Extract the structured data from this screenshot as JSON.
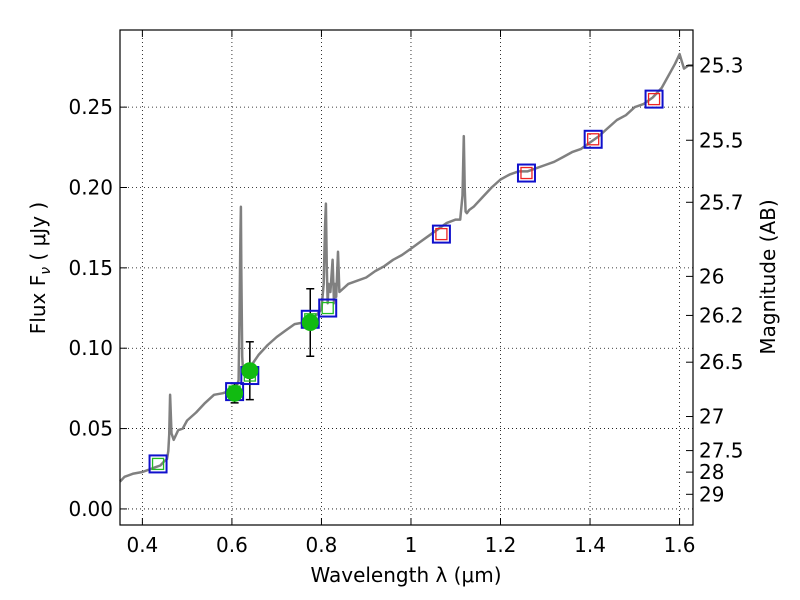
{
  "chart_data": {
    "type": "scatter",
    "xlabel": "Wavelength  λ (μm)",
    "ylabel": "Flux  F",
    "ylabel_sub": "ν",
    "ylabel_unit": " ( μJy )",
    "y2label": "Magnitude (AB)",
    "xlim": [
      0.35,
      1.63
    ],
    "ylim": [
      -0.01,
      0.298
    ],
    "x_ticks": [
      0.4,
      0.6,
      0.8,
      1.0,
      1.2,
      1.4,
      1.6
    ],
    "x_tick_labels": [
      "0.4",
      "0.6",
      "0.8",
      "1",
      "1.2",
      "1.4",
      "1.6"
    ],
    "y_ticks": [
      0.0,
      0.05,
      0.1,
      0.15,
      0.2,
      0.25
    ],
    "y_tick_labels": [
      "0.00",
      "0.05",
      "0.10",
      "0.15",
      "0.20",
      "0.25"
    ],
    "mag_ticks": [
      {
        "label": "25.3",
        "flux": 0.2758
      },
      {
        "label": "25.5",
        "flux": 0.2294
      },
      {
        "label": "25.7",
        "flux": 0.1908
      },
      {
        "label": "26",
        "flux": 0.1447
      },
      {
        "label": "26.2",
        "flux": 0.1204
      },
      {
        "label": "26.5",
        "flux": 0.0913
      },
      {
        "label": "27",
        "flux": 0.0575
      },
      {
        "label": "27.5",
        "flux": 0.0363
      },
      {
        "label": "28",
        "flux": 0.0229
      },
      {
        "label": "29",
        "flux": 0.0091
      }
    ],
    "grid": true,
    "spectrum": {
      "color": "#808080",
      "x": [
        0.35,
        0.36,
        0.38,
        0.4,
        0.42,
        0.43,
        0.44,
        0.45,
        0.455,
        0.458,
        0.46,
        0.462,
        0.465,
        0.47,
        0.48,
        0.49,
        0.5,
        0.52,
        0.54,
        0.56,
        0.58,
        0.6,
        0.61,
        0.615,
        0.617,
        0.619,
        0.62,
        0.621,
        0.623,
        0.625,
        0.63,
        0.64,
        0.65,
        0.66,
        0.68,
        0.7,
        0.72,
        0.74,
        0.76,
        0.78,
        0.79,
        0.8,
        0.805,
        0.808,
        0.81,
        0.812,
        0.814,
        0.816,
        0.82,
        0.825,
        0.828,
        0.83,
        0.833,
        0.837,
        0.84,
        0.86,
        0.88,
        0.9,
        0.92,
        0.94,
        0.96,
        0.98,
        1.0,
        1.02,
        1.04,
        1.06,
        1.08,
        1.1,
        1.11,
        1.115,
        1.118,
        1.12,
        1.122,
        1.125,
        1.13,
        1.14,
        1.16,
        1.18,
        1.2,
        1.22,
        1.24,
        1.26,
        1.28,
        1.3,
        1.32,
        1.34,
        1.36,
        1.38,
        1.4,
        1.42,
        1.44,
        1.46,
        1.48,
        1.5,
        1.52,
        1.54,
        1.56,
        1.58,
        1.59,
        1.6,
        1.61,
        1.62,
        1.63
      ],
      "y": [
        0.017,
        0.02,
        0.022,
        0.023,
        0.025,
        0.026,
        0.027,
        0.03,
        0.031,
        0.036,
        0.046,
        0.071,
        0.047,
        0.043,
        0.049,
        0.05,
        0.055,
        0.06,
        0.066,
        0.071,
        0.072,
        0.074,
        0.076,
        0.08,
        0.12,
        0.17,
        0.188,
        0.15,
        0.095,
        0.085,
        0.087,
        0.088,
        0.092,
        0.096,
        0.102,
        0.107,
        0.111,
        0.115,
        0.116,
        0.119,
        0.121,
        0.124,
        0.14,
        0.175,
        0.19,
        0.15,
        0.128,
        0.14,
        0.135,
        0.155,
        0.128,
        0.14,
        0.132,
        0.16,
        0.135,
        0.14,
        0.142,
        0.144,
        0.148,
        0.151,
        0.155,
        0.158,
        0.162,
        0.166,
        0.17,
        0.174,
        0.178,
        0.18,
        0.18,
        0.195,
        0.232,
        0.2,
        0.185,
        0.184,
        0.186,
        0.188,
        0.194,
        0.2,
        0.205,
        0.208,
        0.21,
        0.21,
        0.212,
        0.214,
        0.216,
        0.219,
        0.222,
        0.224,
        0.228,
        0.232,
        0.237,
        0.242,
        0.245,
        0.25,
        0.252,
        0.256,
        0.262,
        0.272,
        0.277,
        0.283,
        0.274,
        0.276,
        0.276
      ]
    },
    "series": [
      {
        "marker": "square",
        "edge_color": "#1010cc",
        "points": [
          {
            "x": 0.435,
            "y": 0.028
          },
          {
            "x": 0.606,
            "y": 0.073
          },
          {
            "x": 0.64,
            "y": 0.083
          },
          {
            "x": 0.775,
            "y": 0.118
          },
          {
            "x": 0.814,
            "y": 0.125
          },
          {
            "x": 1.068,
            "y": 0.171
          },
          {
            "x": 1.258,
            "y": 0.209
          },
          {
            "x": 1.407,
            "y": 0.23
          },
          {
            "x": 1.543,
            "y": 0.255
          }
        ]
      },
      {
        "marker": "small-square",
        "points": [
          {
            "x": 0.435,
            "y": 0.028,
            "color": "#22bb22"
          },
          {
            "x": 0.606,
            "y": 0.073,
            "color": "#22bb22"
          },
          {
            "x": 0.64,
            "y": 0.083,
            "color": "#22bb22"
          },
          {
            "x": 0.775,
            "y": 0.118,
            "color": "#22bb22"
          },
          {
            "x": 0.814,
            "y": 0.125,
            "color": "#22bb22"
          },
          {
            "x": 1.068,
            "y": 0.171,
            "color": "#ee2222"
          },
          {
            "x": 1.258,
            "y": 0.209,
            "color": "#ee2222"
          },
          {
            "x": 1.407,
            "y": 0.23,
            "color": "#ee2222"
          },
          {
            "x": 1.543,
            "y": 0.255,
            "color": "#ee2222"
          }
        ]
      },
      {
        "marker": "circle",
        "color": "#11bb11",
        "points": [
          {
            "x": 0.606,
            "y": 0.072,
            "err": 0.006
          },
          {
            "x": 0.64,
            "y": 0.086,
            "err": 0.018
          },
          {
            "x": 0.775,
            "y": 0.116,
            "err": 0.021
          }
        ]
      }
    ]
  }
}
